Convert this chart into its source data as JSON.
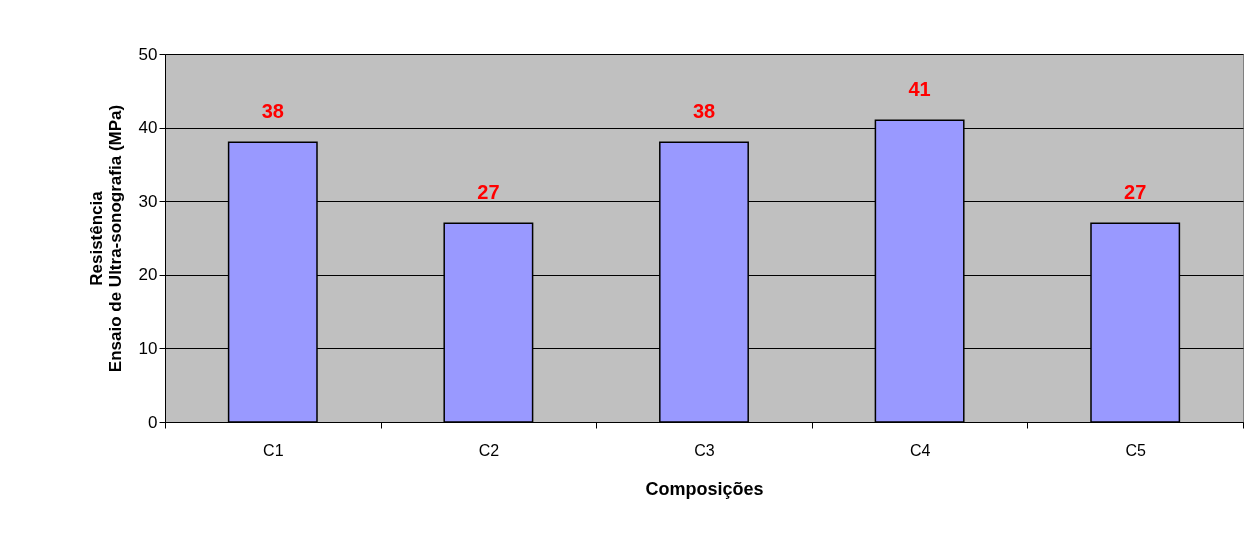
{
  "chart_data": {
    "type": "bar",
    "xlabel": "Composições",
    "ylabel": "Resistência\nEnsaio de Ultra-sonografia (MPa)",
    "categories": [
      "C1",
      "C2",
      "C3",
      "C4",
      "C5"
    ],
    "values": [
      38,
      27,
      38,
      41,
      27
    ],
    "color": "#9999ff",
    "ylim": [
      0,
      50
    ],
    "yticks": [
      0,
      10,
      20,
      30,
      40,
      50
    ],
    "grid": "y",
    "data_labels": true
  }
}
